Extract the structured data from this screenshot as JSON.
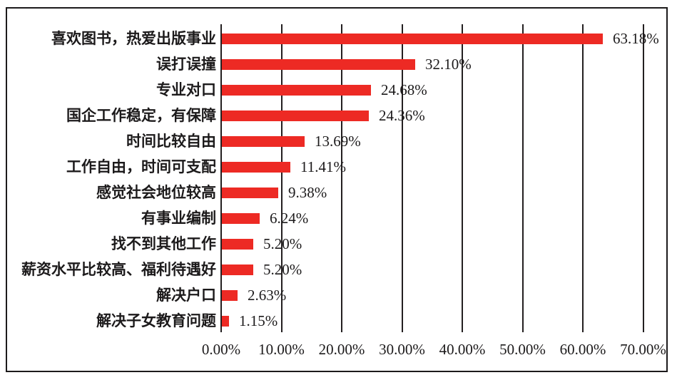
{
  "chart_data": {
    "type": "bar",
    "orientation": "horizontal",
    "title": "",
    "categories": [
      "喜欢图书，热爱出版事业",
      "误打误撞",
      "专业对口",
      "国企工作稳定，有保障",
      "时间比较自由",
      "工作自由，时间可支配",
      "感觉社会地位较高",
      "有事业编制",
      "找不到其他工作",
      "薪资水平比较高、福利待遇好",
      "解决户口",
      "解决子女教育问题"
    ],
    "values": [
      63.18,
      32.1,
      24.68,
      24.36,
      13.69,
      11.41,
      9.38,
      6.24,
      5.2,
      5.2,
      2.63,
      1.15
    ],
    "data_labels": [
      "63.18%",
      "32.10%",
      "24.68%",
      "24.36%",
      "13.69%",
      "11.41%",
      "9.38%",
      "6.24%",
      "5.20%",
      "5.20%",
      "2.63%",
      "1.15%"
    ],
    "x_axis": {
      "ticks": [
        "0.00%",
        "10.00%",
        "20.00%",
        "30.00%",
        "40.00%",
        "50.00%",
        "60.00%",
        "70.00%"
      ],
      "min": 0,
      "max": 70,
      "tick_step": 10
    },
    "legend": "none",
    "grid": "vertical",
    "colors": {
      "bar": "#ed2a24",
      "text": "#1c1a1b",
      "gridline": "#231f20",
      "frame_border": "#1c1a1b",
      "background": "#ffffff"
    }
  }
}
